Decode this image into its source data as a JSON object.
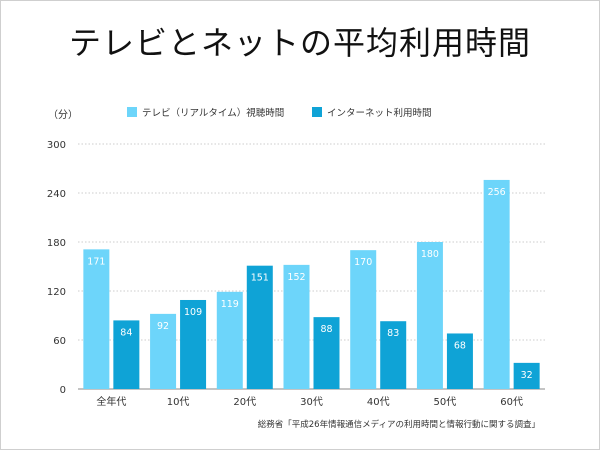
{
  "title": "テレビとネットの平均利用時間",
  "source": "総務省「平成26年情報通信メディアの利用時間と情報行動に関する調査」",
  "chart_data": {
    "type": "bar",
    "title": "テレビとネットの平均利用時間",
    "ylabel": "（分）",
    "xlabel": "",
    "ylim": [
      0,
      300
    ],
    "yticks": [
      0,
      60,
      120,
      180,
      240,
      300
    ],
    "legend_position": "top",
    "categories": [
      "全年代",
      "10代",
      "20代",
      "30代",
      "40代",
      "50代",
      "60代"
    ],
    "series": [
      {
        "name": "テレビ（リアルタイム）視聴時間",
        "color": "#6dd5fa",
        "values": [
          171,
          92,
          119,
          152,
          170,
          180,
          256
        ]
      },
      {
        "name": "インターネット利用時間",
        "color": "#0fa3d6",
        "values": [
          84,
          109,
          151,
          88,
          83,
          68,
          32
        ]
      }
    ]
  }
}
